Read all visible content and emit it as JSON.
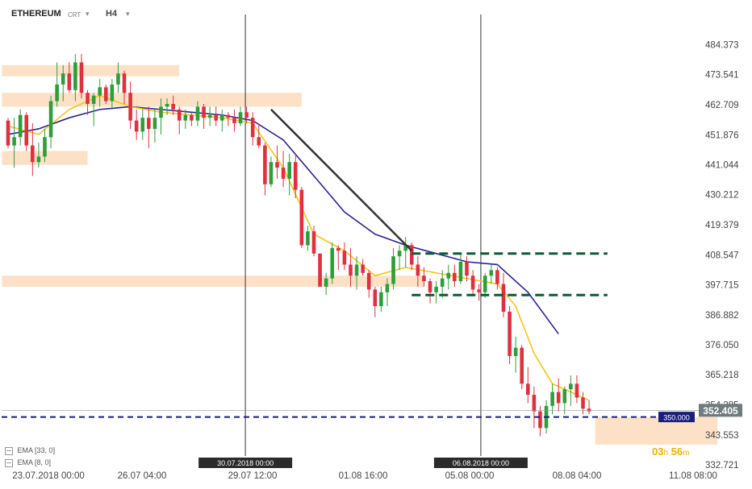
{
  "header": {
    "symbol": "ETHEREUM",
    "chart_type": "CRT",
    "timeframe": "H4"
  },
  "legend": [
    {
      "label": "EMA",
      "params": "[33, 0]"
    },
    {
      "label": "EMA",
      "params": "[8, 0]"
    }
  ],
  "timer": {
    "hours": "03",
    "h": "h",
    "minutes": "56",
    "m": "m"
  },
  "colors": {
    "up": "#2e9e3a",
    "down": "#e03040",
    "ema_slow": "#2a2390",
    "ema_fast": "#f5c518",
    "zone": "#fbdcbc",
    "support": "#1a1f7a",
    "channel": "#0b5a36"
  },
  "chart_data": {
    "type": "candlestick",
    "title": "ETHEREUM",
    "timeframe": "H4",
    "yticks": [
      "484.373",
      "473.541",
      "462.709",
      "451.876",
      "441.044",
      "430.212",
      "419.379",
      "408.547",
      "397.715",
      "386.882",
      "376.050",
      "365.218",
      "354.385",
      "343.553",
      "332.721"
    ],
    "ylim": [
      332.721,
      484.373
    ],
    "xticks": [
      "23.07.2018  00:00",
      "26.07  04:00",
      "29.07  12:00",
      "01.08  16:00",
      "05.08  00:00",
      "08.08  04:00",
      "11.08  08:00"
    ],
    "vlines": [
      "30.07.2018 00:00",
      "06.08.2018 00:00"
    ],
    "current_price": "352.405",
    "support_level": "350.000",
    "support_value": 350.0,
    "ohlc": [
      [
        457,
        458,
        447,
        448
      ],
      [
        448,
        458,
        440,
        451
      ],
      [
        451,
        461,
        448,
        459
      ],
      [
        459,
        460,
        446,
        448
      ],
      [
        448,
        456,
        437,
        442
      ],
      [
        442,
        449,
        440,
        444
      ],
      [
        444,
        454,
        442,
        451
      ],
      [
        451,
        466,
        447,
        464
      ],
      [
        464,
        478,
        462,
        470
      ],
      [
        470,
        477,
        464,
        474
      ],
      [
        474,
        478,
        467,
        468
      ],
      [
        468,
        481,
        464,
        478
      ],
      [
        478,
        481,
        465,
        467
      ],
      [
        467,
        468,
        459,
        463
      ],
      [
        463,
        467,
        455,
        466
      ],
      [
        466,
        472,
        462,
        469
      ],
      [
        469,
        470,
        463,
        464
      ],
      [
        464,
        472,
        461,
        470
      ],
      [
        470,
        478,
        467,
        474
      ],
      [
        474,
        475,
        463,
        467
      ],
      [
        467,
        471,
        454,
        457
      ],
      [
        457,
        461,
        450,
        453
      ],
      [
        453,
        461,
        450,
        458
      ],
      [
        458,
        462,
        447,
        454
      ],
      [
        454,
        461,
        449,
        458
      ],
      [
        458,
        465,
        452,
        462
      ],
      [
        462,
        465,
        459,
        463
      ],
      [
        463,
        466,
        459,
        461
      ],
      [
        461,
        462,
        452,
        457
      ],
      [
        457,
        461,
        454,
        459
      ],
      [
        459,
        460,
        455,
        457
      ],
      [
        457,
        464,
        455,
        462
      ],
      [
        462,
        463,
        454,
        458
      ],
      [
        458,
        462,
        455,
        459
      ],
      [
        459,
        462,
        455,
        457
      ],
      [
        457,
        461,
        453,
        459
      ],
      [
        459,
        460,
        455,
        458
      ],
      [
        458,
        461,
        453,
        456
      ],
      [
        456,
        462,
        455,
        460
      ],
      [
        460,
        462,
        456,
        458
      ],
      [
        458,
        460,
        448,
        451
      ],
      [
        451,
        456,
        447,
        448
      ],
      [
        448,
        449,
        430,
        434
      ],
      [
        434,
        444,
        433,
        442
      ],
      [
        442,
        448,
        436,
        440
      ],
      [
        440,
        446,
        433,
        436
      ],
      [
        436,
        445,
        430,
        442
      ],
      [
        442,
        445,
        429,
        432
      ],
      [
        432,
        433,
        411,
        412
      ],
      [
        412,
        419,
        410,
        417
      ],
      [
        417,
        419,
        408,
        409
      ],
      [
        409,
        409,
        397,
        397
      ],
      [
        397,
        402,
        394,
        400
      ],
      [
        400,
        413,
        398,
        411
      ],
      [
        411,
        412,
        403,
        410
      ],
      [
        410,
        413,
        403,
        405
      ],
      [
        405,
        411,
        397,
        401
      ],
      [
        401,
        408,
        396,
        405
      ],
      [
        405,
        407,
        401,
        402
      ],
      [
        402,
        403,
        393,
        396
      ],
      [
        396,
        397,
        386,
        390
      ],
      [
        390,
        397,
        388,
        395
      ],
      [
        395,
        400,
        390,
        398
      ],
      [
        398,
        411,
        396,
        408
      ],
      [
        408,
        412,
        403,
        410
      ],
      [
        410,
        415,
        404,
        412
      ],
      [
        412,
        413,
        403,
        405
      ],
      [
        405,
        408,
        397,
        401
      ],
      [
        401,
        404,
        397,
        399
      ],
      [
        399,
        400,
        391,
        395
      ],
      [
        395,
        399,
        391,
        397
      ],
      [
        397,
        403,
        393,
        400
      ],
      [
        400,
        405,
        396,
        402
      ],
      [
        402,
        405,
        397,
        399
      ],
      [
        399,
        409,
        398,
        406
      ],
      [
        406,
        408,
        399,
        401
      ],
      [
        401,
        403,
        394,
        396
      ],
      [
        396,
        398,
        392,
        395
      ],
      [
        395,
        402,
        393,
        401
      ],
      [
        401,
        405,
        398,
        403
      ],
      [
        403,
        404,
        396,
        398
      ],
      [
        398,
        402,
        386,
        388
      ],
      [
        388,
        390,
        369,
        372
      ],
      [
        372,
        379,
        366,
        375
      ],
      [
        375,
        376,
        360,
        362
      ],
      [
        362,
        368,
        355,
        358
      ],
      [
        358,
        361,
        346,
        352
      ],
      [
        352,
        354,
        343,
        346
      ],
      [
        346,
        356,
        344,
        354
      ],
      [
        354,
        362,
        351,
        359
      ],
      [
        359,
        364,
        352,
        355
      ],
      [
        355,
        361,
        351,
        360
      ],
      [
        360,
        365,
        354,
        362
      ],
      [
        362,
        365,
        355,
        357
      ],
      [
        357,
        359,
        351,
        353
      ],
      [
        353,
        356,
        351,
        352
      ]
    ],
    "ema8": [
      [
        0,
        455
      ],
      [
        5,
        452
      ],
      [
        10,
        461
      ],
      [
        15,
        466
      ],
      [
        20,
        462
      ],
      [
        25,
        460
      ],
      [
        30,
        459
      ],
      [
        35,
        458
      ],
      [
        40,
        456
      ],
      [
        45,
        440
      ],
      [
        50,
        416
      ],
      [
        55,
        410
      ],
      [
        60,
        401
      ],
      [
        65,
        404
      ],
      [
        70,
        402
      ],
      [
        75,
        400
      ],
      [
        80,
        398
      ],
      [
        83,
        390
      ],
      [
        86,
        373
      ],
      [
        89,
        362
      ],
      [
        92,
        359
      ],
      [
        95,
        356
      ]
    ],
    "ema33": [
      [
        0,
        452
      ],
      [
        5,
        454
      ],
      [
        10,
        458
      ],
      [
        15,
        461
      ],
      [
        20,
        462
      ],
      [
        25,
        461
      ],
      [
        30,
        460
      ],
      [
        35,
        459
      ],
      [
        40,
        457
      ],
      [
        45,
        450
      ],
      [
        50,
        437
      ],
      [
        55,
        424
      ],
      [
        60,
        416
      ],
      [
        65,
        412
      ],
      [
        70,
        409
      ],
      [
        75,
        406
      ],
      [
        80,
        405
      ],
      [
        85,
        395
      ],
      [
        90,
        380
      ]
    ],
    "zones": [
      {
        "x0": -1,
        "x1": 28,
        "y0": 473,
        "y1": 477
      },
      {
        "x0": -1,
        "x1": 48,
        "y0": 462,
        "y1": 467
      },
      {
        "x0": -1,
        "x1": 13,
        "y0": 441,
        "y1": 446
      },
      {
        "x0": -1,
        "x1": 68,
        "y0": 397,
        "y1": 401
      },
      {
        "x0": 96,
        "x1": 116,
        "y0": 340,
        "y1": 350
      }
    ],
    "trendline": [
      [
        43,
        461
      ],
      [
        66,
        410
      ]
    ],
    "channel": [
      [
        66,
        98,
        409,
        394
      ]
    ]
  }
}
